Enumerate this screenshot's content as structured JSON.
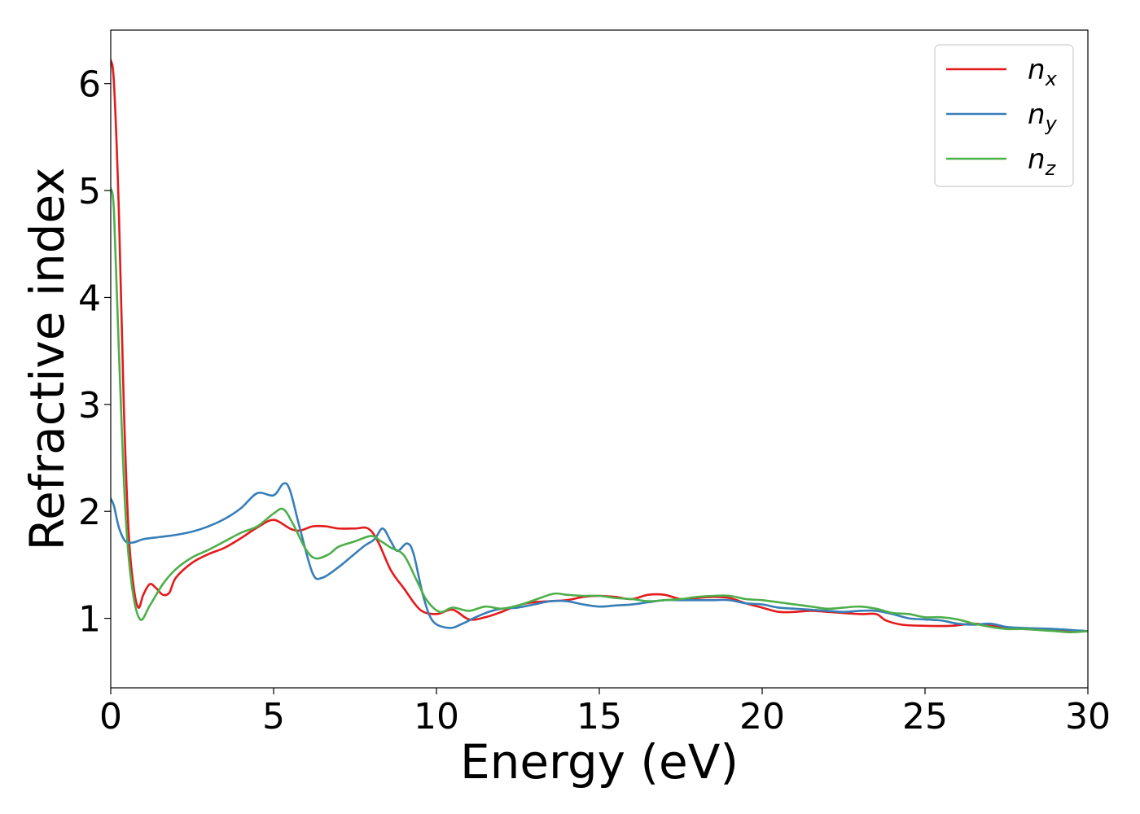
{
  "chart_data": {
    "type": "line",
    "title": "",
    "xlabel": "Energy (eV)",
    "ylabel": "Refractive index",
    "xlim": [
      0,
      30
    ],
    "ylim": [
      0.35,
      6.5
    ],
    "xticks": [
      "0",
      "5",
      "10",
      "15",
      "20",
      "25",
      "30"
    ],
    "yticks": [
      "1",
      "2",
      "3",
      "4",
      "5",
      "6"
    ],
    "grid": false,
    "legend_position": "top-right",
    "series": [
      {
        "name": "n",
        "subscript": "x",
        "color": "#e41a1c",
        "points": [
          [
            0,
            6.22
          ],
          [
            0.1,
            6.0
          ],
          [
            0.25,
            4.8
          ],
          [
            0.4,
            3.0
          ],
          [
            0.55,
            1.8
          ],
          [
            0.7,
            1.3
          ],
          [
            0.85,
            1.1
          ],
          [
            1.0,
            1.22
          ],
          [
            1.2,
            1.32
          ],
          [
            1.4,
            1.28
          ],
          [
            1.6,
            1.22
          ],
          [
            1.8,
            1.24
          ],
          [
            2.0,
            1.38
          ],
          [
            2.5,
            1.52
          ],
          [
            3.0,
            1.6
          ],
          [
            3.5,
            1.66
          ],
          [
            4.0,
            1.75
          ],
          [
            4.5,
            1.85
          ],
          [
            5.0,
            1.92
          ],
          [
            5.5,
            1.84
          ],
          [
            5.8,
            1.82
          ],
          [
            6.2,
            1.86
          ],
          [
            6.6,
            1.86
          ],
          [
            7.0,
            1.84
          ],
          [
            7.5,
            1.84
          ],
          [
            7.9,
            1.84
          ],
          [
            8.2,
            1.72
          ],
          [
            8.6,
            1.45
          ],
          [
            9.0,
            1.28
          ],
          [
            9.5,
            1.08
          ],
          [
            10.0,
            1.04
          ],
          [
            10.5,
            1.08
          ],
          [
            11.0,
            0.99
          ],
          [
            11.5,
            1.01
          ],
          [
            12.0,
            1.06
          ],
          [
            12.5,
            1.12
          ],
          [
            13.0,
            1.15
          ],
          [
            14.0,
            1.17
          ],
          [
            14.5,
            1.2
          ],
          [
            15.0,
            1.21
          ],
          [
            15.5,
            1.2
          ],
          [
            16.0,
            1.18
          ],
          [
            16.5,
            1.22
          ],
          [
            17.0,
            1.22
          ],
          [
            17.5,
            1.18
          ],
          [
            18.0,
            1.19
          ],
          [
            18.5,
            1.2
          ],
          [
            19.0,
            1.19
          ],
          [
            19.5,
            1.14
          ],
          [
            20.0,
            1.1
          ],
          [
            20.5,
            1.06
          ],
          [
            21.0,
            1.06
          ],
          [
            21.5,
            1.07
          ],
          [
            22.0,
            1.06
          ],
          [
            23.0,
            1.04
          ],
          [
            23.5,
            1.04
          ],
          [
            23.8,
            0.98
          ],
          [
            24.3,
            0.94
          ],
          [
            25.0,
            0.93
          ],
          [
            25.8,
            0.93
          ],
          [
            26.5,
            0.95
          ],
          [
            27.0,
            0.93
          ],
          [
            28.0,
            0.9
          ],
          [
            29.0,
            0.89
          ],
          [
            30.0,
            0.88
          ]
        ]
      },
      {
        "name": "n",
        "subscript": "y",
        "color": "#377eb8",
        "points": [
          [
            0,
            2.12
          ],
          [
            0.1,
            2.05
          ],
          [
            0.25,
            1.85
          ],
          [
            0.45,
            1.72
          ],
          [
            0.7,
            1.71
          ],
          [
            1.0,
            1.74
          ],
          [
            1.5,
            1.76
          ],
          [
            2.0,
            1.78
          ],
          [
            2.5,
            1.81
          ],
          [
            3.0,
            1.86
          ],
          [
            3.5,
            1.93
          ],
          [
            4.0,
            2.03
          ],
          [
            4.5,
            2.17
          ],
          [
            5.0,
            2.15
          ],
          [
            5.3,
            2.26
          ],
          [
            5.5,
            2.2
          ],
          [
            5.8,
            1.85
          ],
          [
            6.2,
            1.42
          ],
          [
            6.5,
            1.38
          ],
          [
            7.0,
            1.48
          ],
          [
            7.4,
            1.58
          ],
          [
            7.8,
            1.68
          ],
          [
            8.1,
            1.74
          ],
          [
            8.35,
            1.84
          ],
          [
            8.6,
            1.72
          ],
          [
            8.8,
            1.63
          ],
          [
            9.1,
            1.7
          ],
          [
            9.3,
            1.6
          ],
          [
            9.6,
            1.2
          ],
          [
            9.9,
            0.97
          ],
          [
            10.4,
            0.91
          ],
          [
            10.8,
            0.95
          ],
          [
            11.2,
            1.01
          ],
          [
            11.6,
            1.06
          ],
          [
            12.0,
            1.09
          ],
          [
            12.5,
            1.1
          ],
          [
            13.0,
            1.13
          ],
          [
            13.5,
            1.16
          ],
          [
            14.0,
            1.16
          ],
          [
            14.5,
            1.13
          ],
          [
            15.0,
            1.11
          ],
          [
            15.5,
            1.12
          ],
          [
            16.0,
            1.13
          ],
          [
            16.5,
            1.15
          ],
          [
            17.0,
            1.17
          ],
          [
            17.5,
            1.17
          ],
          [
            18.0,
            1.17
          ],
          [
            18.5,
            1.17
          ],
          [
            19.0,
            1.17
          ],
          [
            19.5,
            1.14
          ],
          [
            20.0,
            1.13
          ],
          [
            20.5,
            1.1
          ],
          [
            21.0,
            1.09
          ],
          [
            21.5,
            1.08
          ],
          [
            22.0,
            1.07
          ],
          [
            22.5,
            1.06
          ],
          [
            23.0,
            1.07
          ],
          [
            23.5,
            1.07
          ],
          [
            24.0,
            1.04
          ],
          [
            24.5,
            1.0
          ],
          [
            25.0,
            0.99
          ],
          [
            25.5,
            0.98
          ],
          [
            26.0,
            0.95
          ],
          [
            26.5,
            0.94
          ],
          [
            27.0,
            0.95
          ],
          [
            27.5,
            0.92
          ],
          [
            28.0,
            0.91
          ],
          [
            29.0,
            0.9
          ],
          [
            30.0,
            0.88
          ]
        ]
      },
      {
        "name": "n",
        "subscript": "z",
        "color": "#4daf4a",
        "points": [
          [
            0,
            5.02
          ],
          [
            0.1,
            4.8
          ],
          [
            0.25,
            3.5
          ],
          [
            0.45,
            2.0
          ],
          [
            0.65,
            1.3
          ],
          [
            0.9,
            0.99
          ],
          [
            1.2,
            1.12
          ],
          [
            1.6,
            1.32
          ],
          [
            2.0,
            1.46
          ],
          [
            2.5,
            1.57
          ],
          [
            3.0,
            1.64
          ],
          [
            3.5,
            1.72
          ],
          [
            4.0,
            1.8
          ],
          [
            4.5,
            1.86
          ],
          [
            5.0,
            1.98
          ],
          [
            5.3,
            2.02
          ],
          [
            5.6,
            1.88
          ],
          [
            6.0,
            1.64
          ],
          [
            6.3,
            1.56
          ],
          [
            6.7,
            1.6
          ],
          [
            7.0,
            1.67
          ],
          [
            7.5,
            1.72
          ],
          [
            8.0,
            1.77
          ],
          [
            8.3,
            1.72
          ],
          [
            8.6,
            1.66
          ],
          [
            9.0,
            1.59
          ],
          [
            9.4,
            1.35
          ],
          [
            9.7,
            1.17
          ],
          [
            10.1,
            1.06
          ],
          [
            10.5,
            1.1
          ],
          [
            11.0,
            1.07
          ],
          [
            11.5,
            1.11
          ],
          [
            12.0,
            1.09
          ],
          [
            12.5,
            1.12
          ],
          [
            13.0,
            1.17
          ],
          [
            13.6,
            1.23
          ],
          [
            14.0,
            1.22
          ],
          [
            14.5,
            1.21
          ],
          [
            15.0,
            1.21
          ],
          [
            15.5,
            1.19
          ],
          [
            16.0,
            1.18
          ],
          [
            16.5,
            1.16
          ],
          [
            17.0,
            1.17
          ],
          [
            17.5,
            1.18
          ],
          [
            18.0,
            1.2
          ],
          [
            18.5,
            1.21
          ],
          [
            19.0,
            1.21
          ],
          [
            19.5,
            1.18
          ],
          [
            20.0,
            1.17
          ],
          [
            20.5,
            1.15
          ],
          [
            21.0,
            1.13
          ],
          [
            21.5,
            1.11
          ],
          [
            22.0,
            1.09
          ],
          [
            22.5,
            1.1
          ],
          [
            23.0,
            1.11
          ],
          [
            23.5,
            1.09
          ],
          [
            24.0,
            1.05
          ],
          [
            24.5,
            1.04
          ],
          [
            25.0,
            1.01
          ],
          [
            25.5,
            1.01
          ],
          [
            26.0,
            0.99
          ],
          [
            26.5,
            0.95
          ],
          [
            27.0,
            0.92
          ],
          [
            27.5,
            0.9
          ],
          [
            28.0,
            0.9
          ],
          [
            28.5,
            0.89
          ],
          [
            29.0,
            0.88
          ],
          [
            29.5,
            0.87
          ],
          [
            30.0,
            0.88
          ]
        ]
      }
    ]
  }
}
